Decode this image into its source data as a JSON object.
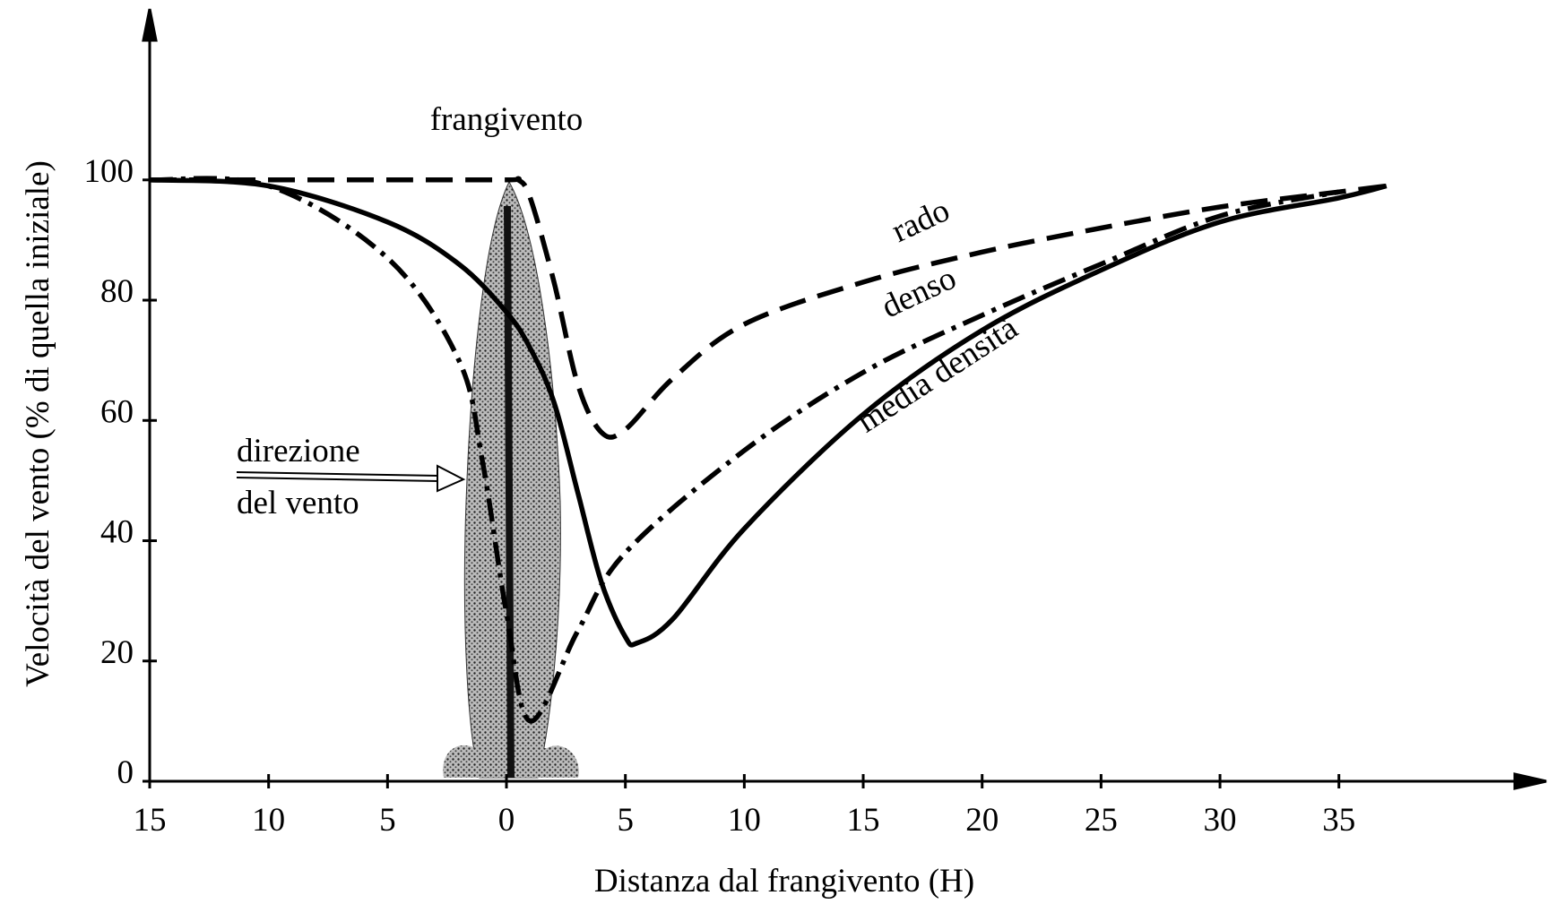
{
  "chart_data": {
    "type": "line",
    "x_label": "Distanza dal frangivento (H)",
    "y_label": "Velocità del vento (% di quella iniziale)",
    "annotations": {
      "windbreak": "frangivento",
      "wind_direction": [
        "direzione",
        "del vento"
      ]
    },
    "xlim": [
      -15,
      43
    ],
    "ylim": [
      0,
      125
    ],
    "xticks": [
      {
        "value": -15,
        "label": "15"
      },
      {
        "value": -10,
        "label": "10"
      },
      {
        "value": -5,
        "label": "5"
      },
      0,
      5,
      10,
      15,
      20,
      25,
      30,
      35
    ],
    "yticks": [
      0,
      20,
      40,
      60,
      80,
      100
    ],
    "series": [
      {
        "name": "rado",
        "color": "#000000",
        "line_style": "dashed",
        "x": [
          -15,
          -10,
          -5,
          0,
          0.5,
          1,
          2,
          3,
          4,
          5,
          7,
          10,
          15,
          20,
          25,
          30,
          35,
          37
        ],
        "values": [
          100,
          100,
          100,
          100,
          100,
          97,
          83,
          66,
          58,
          58.5,
          67,
          76,
          83,
          88,
          92,
          95.5,
          98,
          99
        ]
      },
      {
        "name": "denso",
        "color": "#000000",
        "line_style": "dashdot",
        "x": [
          -15,
          -10,
          -5,
          -2,
          -1,
          0,
          1,
          3,
          5,
          10,
          15,
          20,
          25,
          30,
          35
        ],
        "values": [
          100,
          99,
          87,
          70,
          53,
          28,
          10,
          25,
          38,
          55,
          68,
          77.5,
          86,
          94,
          98
        ]
      },
      {
        "name": "media densità",
        "color": "#000000",
        "line_style": "solid",
        "x": [
          -15,
          -10,
          -5,
          -2,
          0,
          1,
          2,
          3,
          4,
          5,
          5.5,
          7,
          10,
          15,
          20,
          25,
          30,
          35,
          37
        ],
        "values": [
          100,
          99,
          93,
          86,
          78,
          72,
          63,
          48,
          33,
          24,
          23,
          27,
          42,
          61,
          75,
          85,
          93,
          97,
          99
        ]
      }
    ]
  }
}
